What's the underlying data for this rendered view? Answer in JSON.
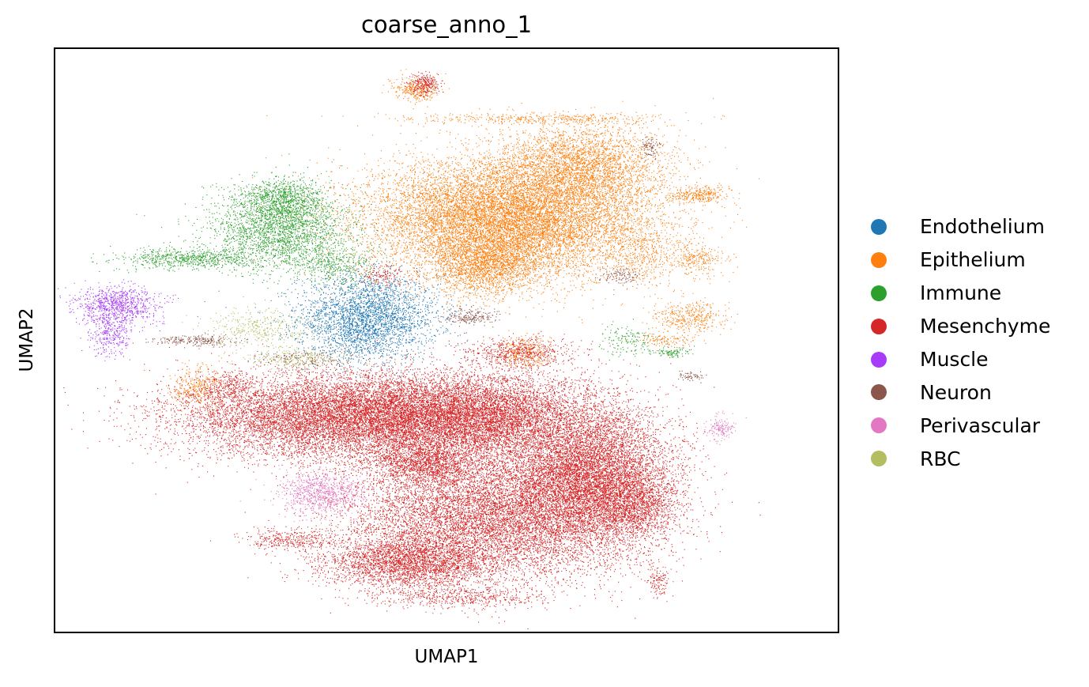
{
  "chart_data": {
    "type": "scatter",
    "title": "coarse_anno_1",
    "xlabel": "UMAP1",
    "ylabel": "UMAP2",
    "xlim": [
      0,
      100
    ],
    "ylim": [
      0,
      100
    ],
    "ticks": false,
    "grid": false,
    "legend_placement": "right",
    "series": [
      {
        "name": "Endothelium",
        "color": "#1f77b4",
        "clusters": [
          [
            40,
            54,
            5,
            4,
            3000
          ],
          [
            38,
            50,
            2,
            2,
            150
          ]
        ]
      },
      {
        "name": "Epithelium",
        "color": "#ff7f0e",
        "clusters": [
          [
            58,
            71,
            10,
            5.5,
            12000
          ],
          [
            67,
            80,
            6,
            4,
            3000
          ],
          [
            55,
            63,
            4,
            3,
            2000
          ],
          [
            75,
            65,
            3,
            3,
            400
          ],
          [
            82,
            64,
            2,
            1.5,
            250
          ],
          [
            81,
            54,
            2.5,
            1.5,
            400
          ],
          [
            46,
            93,
            1.5,
            1.2,
            300
          ],
          [
            62,
            88,
            10,
            0.5,
            400
          ],
          [
            82,
            75,
            2,
            0.8,
            300
          ],
          [
            60,
            48,
            2,
            1.5,
            300
          ],
          [
            18,
            42,
            2,
            2,
            350
          ],
          [
            78,
            50,
            2,
            0.8,
            120
          ]
        ]
      },
      {
        "name": "Immune",
        "color": "#2ca02c",
        "clusters": [
          [
            29,
            69,
            5,
            4,
            2500
          ],
          [
            29,
            74,
            3,
            2,
            800
          ],
          [
            17,
            64,
            5,
            1,
            700
          ],
          [
            36,
            63,
            3,
            2,
            400
          ],
          [
            73,
            50,
            2,
            1.5,
            150
          ],
          [
            79,
            48,
            1.5,
            0.5,
            100
          ]
        ]
      },
      {
        "name": "Mesenchyme",
        "color": "#d62728",
        "clusters": [
          [
            38,
            37,
            12,
            4,
            12000
          ],
          [
            54,
            37,
            8,
            4,
            6000
          ],
          [
            68,
            27,
            6,
            7,
            9000
          ],
          [
            55,
            20,
            10,
            6,
            9000
          ],
          [
            45,
            12,
            6,
            2.5,
            3000
          ],
          [
            47,
            29,
            4,
            2,
            1500
          ],
          [
            30,
            16,
            3,
            1,
            350
          ],
          [
            59,
            48,
            4,
            1.5,
            600
          ],
          [
            77,
            9,
            0.8,
            1.5,
            120
          ],
          [
            52,
            6,
            6,
            1,
            500
          ],
          [
            47,
            94,
            1.2,
            1,
            250
          ],
          [
            74,
            22,
            3,
            3,
            1200
          ],
          [
            22,
            42,
            2,
            1.5,
            250
          ],
          [
            42,
            61,
            2,
            1,
            150
          ]
        ]
      },
      {
        "name": "Muscle",
        "color": "#a83bf8",
        "clusters": [
          [
            8,
            56,
            3,
            2,
            900
          ],
          [
            7,
            51,
            1.5,
            2,
            300
          ]
        ]
      },
      {
        "name": "Neuron",
        "color": "#8c564b",
        "clusters": [
          [
            18,
            50,
            3,
            0.5,
            250
          ],
          [
            53,
            54,
            2,
            0.8,
            200
          ],
          [
            72,
            61,
            1.5,
            0.8,
            120
          ],
          [
            76,
            83,
            0.6,
            1,
            80
          ],
          [
            81,
            44,
            1,
            0.4,
            60
          ],
          [
            31,
            47,
            3,
            1,
            150
          ]
        ]
      },
      {
        "name": "Perivascular",
        "color": "#e377c2",
        "clusters": [
          [
            34,
            24,
            3,
            2,
            800
          ],
          [
            85,
            35,
            1,
            1.2,
            150
          ]
        ]
      },
      {
        "name": "RBC",
        "color": "#b5bd61",
        "clusters": [
          [
            26,
            52,
            4,
            2,
            400
          ],
          [
            31,
            47,
            4,
            1,
            250
          ]
        ]
      }
    ]
  }
}
